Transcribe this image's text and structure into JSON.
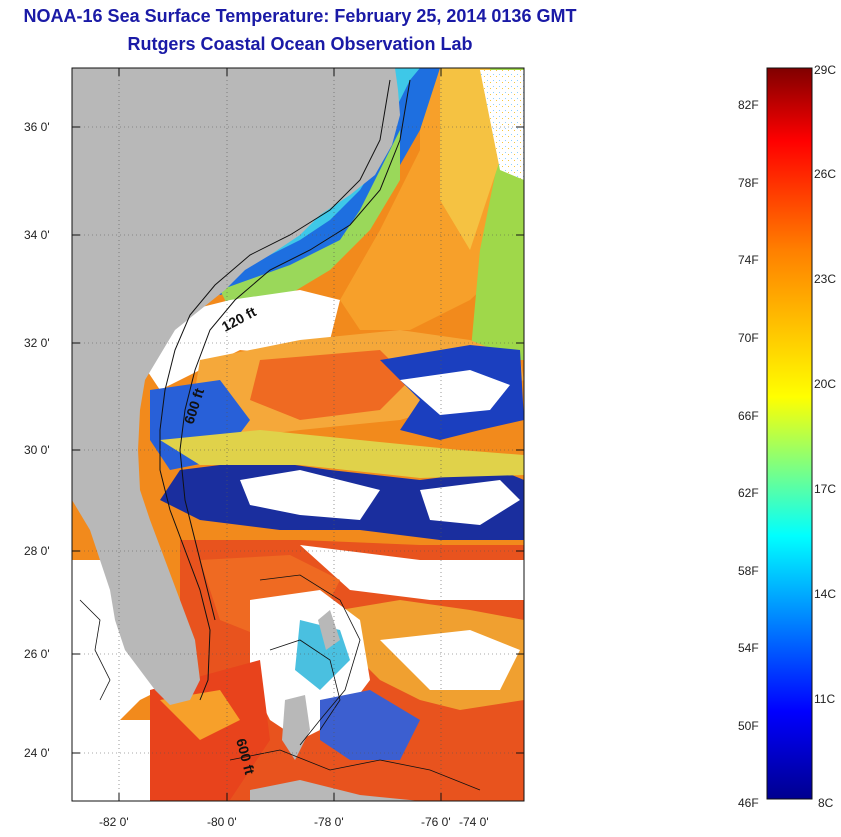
{
  "title": "NOAA-16 Sea Surface Temperature:  February 25, 2014 0136 GMT",
  "subtitle": "Rutgers Coastal Ocean Observation Lab",
  "map": {
    "lat_ticks": [
      "36 0'",
      "34 0'",
      "32 0'",
      "30 0'",
      "28 0'",
      "26 0'",
      "24 0'"
    ],
    "lon_ticks": [
      "-82 0'",
      "-80 0'",
      "-78 0'",
      "-76 0'",
      "-74 0'"
    ],
    "contour_labels": [
      "120 ft",
      "600 ft",
      "600 ft"
    ],
    "colors": {
      "land": "#b8b8b8",
      "cloud": "#ffffff",
      "cold": "#0a1f9c",
      "cool": "#1e90ff",
      "mild": "#a8e04a",
      "warm": "#f5a623",
      "hot": "#e8321e"
    }
  },
  "colorbar": {
    "fahrenheit_labels": [
      "82F",
      "78F",
      "74F",
      "70F",
      "66F",
      "62F",
      "58F",
      "54F",
      "50F",
      "46F"
    ],
    "celsius_labels": [
      "29C",
      "26C",
      "23C",
      "20C",
      "17C",
      "14C",
      "11C",
      "8C"
    ]
  }
}
